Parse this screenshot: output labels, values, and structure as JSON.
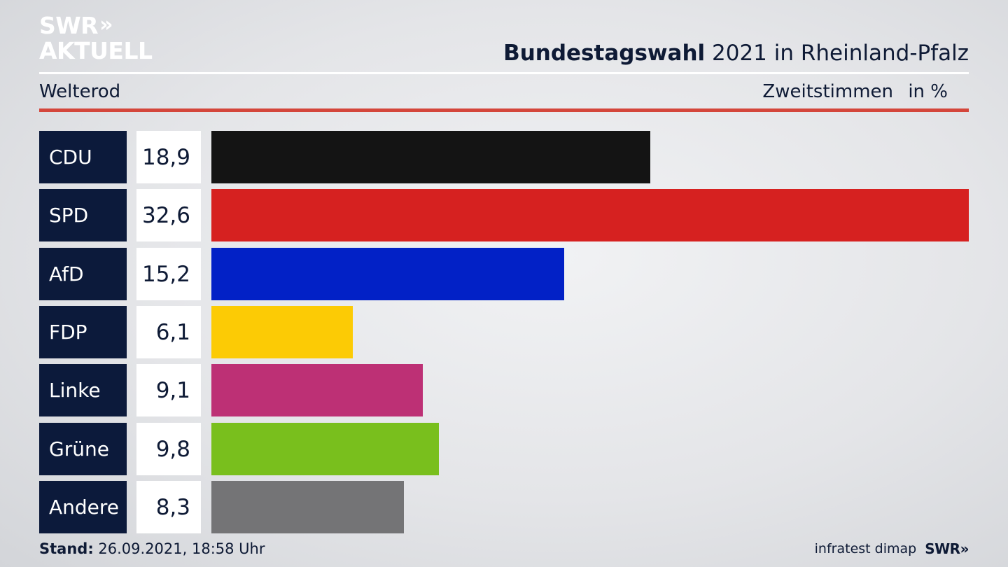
{
  "logo": {
    "line1": "SWR",
    "line2": "AKTUELL",
    "chevrons": "»"
  },
  "header": {
    "title_bold": "Bundestagswahl",
    "title_rest": " 2021 in Rheinland-Pfalz",
    "region": "Welterod",
    "vote_type": "Zweitstimmen",
    "unit": "in %"
  },
  "chart_data": {
    "type": "bar",
    "orientation": "horizontal",
    "categories": [
      "CDU",
      "SPD",
      "AfD",
      "FDP",
      "Linke",
      "Grüne",
      "Andere"
    ],
    "values": [
      18.9,
      32.6,
      15.2,
      6.1,
      9.1,
      9.8,
      8.3
    ],
    "value_labels": [
      "18,9",
      "32,6",
      "15,2",
      "6,1",
      "9,1",
      "9,8",
      "8,3"
    ],
    "colors": [
      "#141414",
      "#d62120",
      "#0221c6",
      "#fccb05",
      "#bd3075",
      "#79bf1d",
      "#747476"
    ],
    "xlim": [
      0,
      32.6
    ]
  },
  "footer": {
    "stand_label": "Stand:",
    "stand_value": " 26.09.2021, 18:58 Uhr",
    "source": "infratest dimap",
    "brand": "SWR",
    "brand_chevrons": "»"
  }
}
